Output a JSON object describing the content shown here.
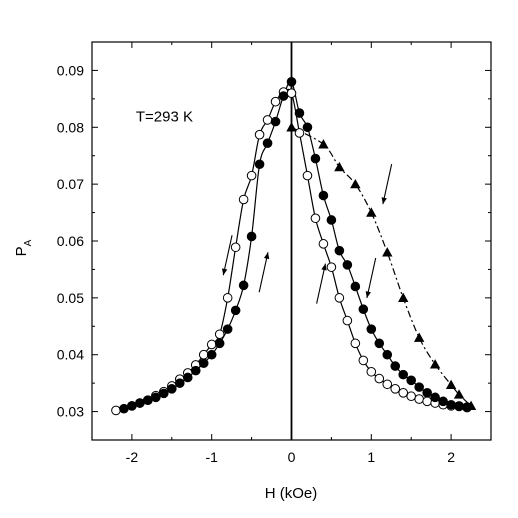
{
  "chart_data": {
    "type": "scatter",
    "xlabel": "H (kOe)",
    "ylabel": "P",
    "ylabel_subscript": "A",
    "xlim": [
      -2.5,
      2.5
    ],
    "ylim": [
      0.025,
      0.095
    ],
    "xticks": [
      -2,
      -1,
      0,
      1,
      2
    ],
    "xtick_labels": [
      "-2",
      "-1",
      "0",
      "1",
      "2"
    ],
    "yticks": [
      0.03,
      0.04,
      0.05,
      0.06,
      0.07,
      0.08,
      0.09
    ],
    "ytick_labels": [
      "0.03",
      "0.04",
      "0.05",
      "0.06",
      "0.07",
      "0.08",
      "0.09"
    ],
    "grid": false,
    "vertical_line_at": 0,
    "annotations": [
      {
        "text": "T=293 K",
        "x": -1.95,
        "y": 0.081
      }
    ],
    "series": [
      {
        "marker": "open-circle",
        "line": "solid",
        "x": [
          -2.2,
          -2.0,
          -1.9,
          -1.8,
          -1.7,
          -1.6,
          -1.5,
          -1.4,
          -1.3,
          -1.2,
          -1.1,
          -1.0,
          -0.9,
          -0.8,
          -0.7,
          -0.6,
          -0.5,
          -0.4,
          -0.3,
          -0.2,
          -0.1,
          0.0,
          0.1,
          0.2,
          0.3,
          0.4,
          0.5,
          0.6,
          0.7,
          0.8,
          0.9,
          1.0,
          1.1,
          1.2,
          1.3,
          1.4,
          1.5,
          1.6,
          1.7,
          1.8,
          1.9,
          2.0,
          2.1,
          2.2
        ],
        "y": [
          0.0302,
          0.031,
          0.0315,
          0.032,
          0.0328,
          0.0335,
          0.0345,
          0.0357,
          0.0368,
          0.0382,
          0.04,
          0.0418,
          0.0436,
          0.05,
          0.0589,
          0.0673,
          0.0715,
          0.0787,
          0.0813,
          0.0845,
          0.0862,
          0.086,
          0.079,
          0.0715,
          0.064,
          0.0595,
          0.0554,
          0.05,
          0.046,
          0.042,
          0.039,
          0.037,
          0.0358,
          0.0348,
          0.034,
          0.0333,
          0.0327,
          0.0322,
          0.0318,
          0.0315,
          0.0312,
          0.031,
          0.0309,
          0.0308
        ]
      },
      {
        "marker": "filled-circle",
        "line": "solid",
        "x": [
          -2.1,
          -2.0,
          -1.9,
          -1.8,
          -1.7,
          -1.6,
          -1.5,
          -1.4,
          -1.3,
          -1.2,
          -1.1,
          -1.0,
          -0.9,
          -0.8,
          -0.7,
          -0.6,
          -0.5,
          -0.4,
          -0.3,
          -0.2,
          -0.1,
          0.0,
          0.1,
          0.2,
          0.3,
          0.4,
          0.5,
          0.6,
          0.7,
          0.8,
          0.9,
          1.0,
          1.1,
          1.2,
          1.3,
          1.4,
          1.5,
          1.6,
          1.7,
          1.8,
          1.9,
          2.0,
          2.1,
          2.2
        ],
        "y": [
          0.0305,
          0.031,
          0.0315,
          0.032,
          0.0325,
          0.0332,
          0.034,
          0.035,
          0.036,
          0.0372,
          0.0385,
          0.04,
          0.042,
          0.0445,
          0.0478,
          0.0522,
          0.0608,
          0.0735,
          0.0772,
          0.081,
          0.0855,
          0.088,
          0.0825,
          0.08,
          0.0745,
          0.068,
          0.0637,
          0.0583,
          0.0558,
          0.052,
          0.048,
          0.0445,
          0.042,
          0.04,
          0.038,
          0.0365,
          0.0355,
          0.0343,
          0.0333,
          0.0325,
          0.0318,
          0.0312,
          0.031,
          0.0307
        ]
      },
      {
        "marker": "filled-triangle",
        "line": "dash-dot",
        "x": [
          0.0,
          0.4,
          0.6,
          0.8,
          1.0,
          1.2,
          1.4,
          1.6,
          1.8,
          2.0,
          2.1,
          2.25
        ],
        "y": [
          0.08,
          0.077,
          0.073,
          0.07,
          0.065,
          0.058,
          0.05,
          0.043,
          0.0383,
          0.0347,
          0.033,
          0.031
        ]
      }
    ],
    "arrows": [
      {
        "x": -0.8,
        "y": 0.0575,
        "direction": "down"
      },
      {
        "x": -0.35,
        "y": 0.0545,
        "direction": "up"
      },
      {
        "x": 0.37,
        "y": 0.0525,
        "direction": "up"
      },
      {
        "x": 1.0,
        "y": 0.0535,
        "direction": "down"
      },
      {
        "x": 1.2,
        "y": 0.07,
        "direction": "down"
      }
    ]
  }
}
